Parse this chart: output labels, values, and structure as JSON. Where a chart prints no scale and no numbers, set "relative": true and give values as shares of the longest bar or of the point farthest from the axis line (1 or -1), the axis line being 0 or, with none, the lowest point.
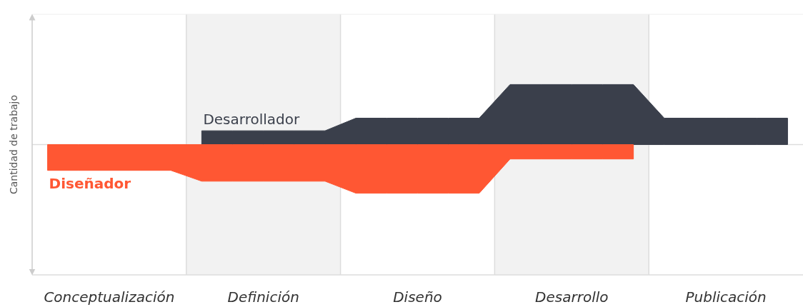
{
  "chart_data": {
    "type": "area",
    "relative": true,
    "ylabel": "Cantidad de trabajo",
    "categories": [
      null,
      null,
      "Conceptualización",
      null,
      null,
      null,
      null,
      "Definición",
      null,
      null,
      null,
      null,
      "Diseño",
      null,
      null,
      null,
      null,
      "Desarrollo",
      null,
      null,
      null,
      null,
      "Publicación",
      null,
      null
    ],
    "series": [
      {
        "name": "Desarrollador",
        "color": "#3a3f4b",
        "values": [
          null,
          null,
          null,
          null,
          null,
          0.23,
          0.23,
          0.23,
          0.23,
          0.23,
          0.44,
          0.44,
          0.44,
          0.44,
          0.44,
          1,
          1,
          1,
          1,
          1,
          0.44,
          0.44,
          0.44,
          0.44,
          0.44
        ]
      },
      {
        "name": "Diseñador",
        "color": "#ff5733",
        "values": [
          -0.43,
          -0.43,
          -0.43,
          -0.43,
          -0.43,
          -0.61,
          -0.61,
          -0.61,
          -0.61,
          -0.61,
          -0.81,
          -0.81,
          -0.81,
          -0.81,
          -0.81,
          -0.24,
          -0.24,
          -0.24,
          -0.24,
          -0.24,
          null,
          null,
          null,
          null,
          null
        ]
      }
    ]
  }
}
